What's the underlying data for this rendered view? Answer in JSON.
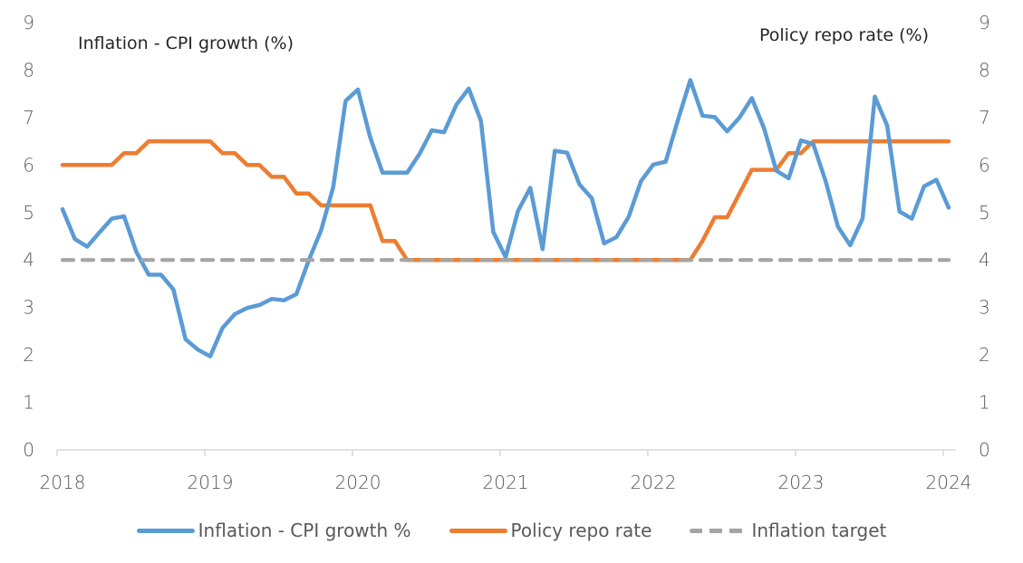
{
  "chart_data": {
    "type": "line",
    "title": "",
    "left_axis_title": "Inflation - CPI growth (%)",
    "right_axis_title": "Policy repo rate (%)",
    "xlabel": "",
    "ylabel": "Inflation - CPI growth (%)",
    "y2label": "Policy repo rate (%)",
    "ylim": [
      0,
      9
    ],
    "y2lim": [
      0,
      9
    ],
    "yticks": [
      "0",
      "1",
      "2",
      "3",
      "4",
      "5",
      "6",
      "7",
      "8",
      "9"
    ],
    "xtick_labels": [
      "2018",
      "2019",
      "2020",
      "2021",
      "2022",
      "2023",
      "2024"
    ],
    "x_start": "2018-01",
    "x_end": "2024-01",
    "x_frequency": "monthly",
    "grid": false,
    "legend_position": "bottom",
    "series": [
      {
        "name": "Inflation - CPI growth %",
        "color": "#5b9bd5",
        "style": "solid",
        "values": [
          5.07,
          4.44,
          4.28,
          4.58,
          4.87,
          4.92,
          4.17,
          3.69,
          3.69,
          3.38,
          2.33,
          2.11,
          1.97,
          2.57,
          2.86,
          2.99,
          3.05,
          3.18,
          3.15,
          3.28,
          3.99,
          4.62,
          5.54,
          7.35,
          7.59,
          6.58,
          5.84,
          5.84,
          5.84,
          6.23,
          6.73,
          6.69,
          7.27,
          7.61,
          6.93,
          4.59,
          4.06,
          5.03,
          5.52,
          4.23,
          6.3,
          6.26,
          5.59,
          5.3,
          4.35,
          4.48,
          4.91,
          5.66,
          6.01,
          6.07,
          6.95,
          7.79,
          7.04,
          7.01,
          6.71,
          7.0,
          7.41,
          6.77,
          5.88,
          5.72,
          6.52,
          6.44,
          5.66,
          4.7,
          4.31,
          4.87,
          7.44,
          6.83,
          5.02,
          4.87,
          5.55,
          5.69,
          5.1
        ]
      },
      {
        "name": "Policy repo rate",
        "color": "#ed7d31",
        "style": "solid",
        "values": [
          6.0,
          6.0,
          6.0,
          6.0,
          6.0,
          6.25,
          6.25,
          6.5,
          6.5,
          6.5,
          6.5,
          6.5,
          6.5,
          6.25,
          6.25,
          6.0,
          6.0,
          5.75,
          5.75,
          5.4,
          5.4,
          5.15,
          5.15,
          5.15,
          5.15,
          5.15,
          4.4,
          4.4,
          4.0,
          4.0,
          4.0,
          4.0,
          4.0,
          4.0,
          4.0,
          4.0,
          4.0,
          4.0,
          4.0,
          4.0,
          4.0,
          4.0,
          4.0,
          4.0,
          4.0,
          4.0,
          4.0,
          4.0,
          4.0,
          4.0,
          4.0,
          4.0,
          4.4,
          4.9,
          4.9,
          5.4,
          5.9,
          5.9,
          5.9,
          6.25,
          6.25,
          6.5,
          6.5,
          6.5,
          6.5,
          6.5,
          6.5,
          6.5,
          6.5,
          6.5,
          6.5,
          6.5,
          6.5
        ]
      },
      {
        "name": "Inflation target",
        "color": "#a5a5a5",
        "style": "dashed",
        "values": [
          4,
          4,
          4,
          4,
          4,
          4,
          4,
          4,
          4,
          4,
          4,
          4,
          4,
          4,
          4,
          4,
          4,
          4,
          4,
          4,
          4,
          4,
          4,
          4,
          4,
          4,
          4,
          4,
          4,
          4,
          4,
          4,
          4,
          4,
          4,
          4,
          4,
          4,
          4,
          4,
          4,
          4,
          4,
          4,
          4,
          4,
          4,
          4,
          4,
          4,
          4,
          4,
          4,
          4,
          4,
          4,
          4,
          4,
          4,
          4,
          4,
          4,
          4,
          4,
          4,
          4,
          4,
          4,
          4,
          4,
          4,
          4,
          4
        ]
      }
    ]
  }
}
